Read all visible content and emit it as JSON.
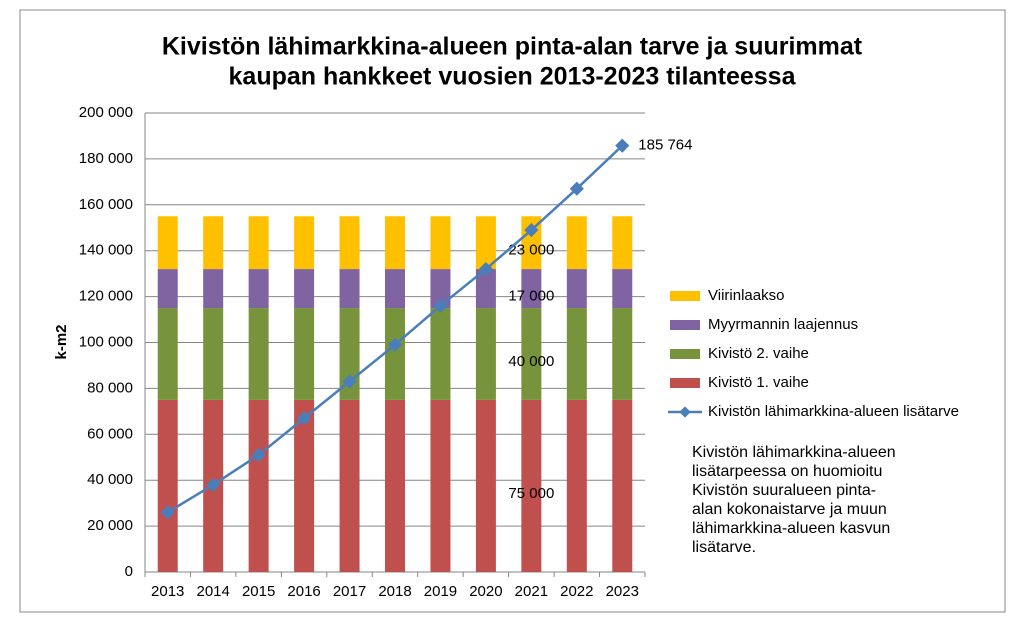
{
  "chart_data": {
    "type": "bar",
    "stacked": true,
    "title": [
      "Kivistön lähimarkkina-alueen pinta-alan tarve ja suurimmat",
      "kaupan hankkeet vuosien 2013-2023 tilanteessa"
    ],
    "y_label": "k-m2",
    "categories": [
      "2013",
      "2014",
      "2015",
      "2016",
      "2017",
      "2018",
      "2019",
      "2020",
      "2021",
      "2022",
      "2023"
    ],
    "series": [
      {
        "name": "Kivistö 1. vaihe",
        "color": "#C0504D",
        "values": [
          75000,
          75000,
          75000,
          75000,
          75000,
          75000,
          75000,
          75000,
          75000,
          75000,
          75000
        ],
        "value_labels": [
          null,
          null,
          null,
          null,
          null,
          null,
          null,
          null,
          "75 000",
          null,
          null
        ]
      },
      {
        "name": "Kivistö 2. vaihe",
        "color": "#77933C",
        "values": [
          40000,
          40000,
          40000,
          40000,
          40000,
          40000,
          40000,
          40000,
          40000,
          40000,
          40000
        ],
        "value_labels": [
          null,
          null,
          null,
          null,
          null,
          null,
          null,
          null,
          "40 000",
          null,
          null
        ]
      },
      {
        "name": "Myyrmannin laajennus",
        "color": "#8064A2",
        "values": [
          17000,
          17000,
          17000,
          17000,
          17000,
          17000,
          17000,
          17000,
          17000,
          17000,
          17000
        ],
        "value_labels": [
          null,
          null,
          null,
          null,
          null,
          null,
          null,
          null,
          "17 000",
          null,
          null
        ]
      },
      {
        "name": "Viirinlaakso",
        "color": "#FFC000",
        "values": [
          23000,
          23000,
          23000,
          23000,
          23000,
          23000,
          23000,
          23000,
          23000,
          23000,
          23000
        ],
        "value_labels": [
          null,
          null,
          null,
          null,
          null,
          null,
          null,
          null,
          "23 000",
          null,
          null
        ]
      },
      {
        "name": "Kivistön lähimarkkina-alueen lisätarve",
        "type": "line",
        "color": "#4A7EBB",
        "values": [
          26000,
          38000,
          51000,
          67000,
          83000,
          99000,
          116000,
          132000,
          149000,
          167000,
          185764
        ],
        "value_labels": [
          null,
          null,
          null,
          null,
          null,
          null,
          null,
          null,
          null,
          null,
          "185 764"
        ]
      }
    ],
    "ylim": [
      0,
      200000
    ],
    "yticks": [
      0,
      {
        "value": 20000,
        "label": "20 000"
      },
      {
        "value": 40000,
        "label": "40 000"
      },
      {
        "value": 60000,
        "label": "60 000"
      },
      {
        "value": 80000,
        "label": "80 000"
      },
      {
        "value": 100000,
        "label": "100 000"
      },
      {
        "value": 120000,
        "label": "120 000"
      },
      {
        "value": 140000,
        "label": "140 000"
      },
      {
        "value": 160000,
        "label": "160 000"
      },
      {
        "value": 180000,
        "label": "180 000"
      },
      {
        "value": 200000,
        "label": "200 000"
      }
    ],
    "grid": true,
    "legend": "right",
    "annotation": [
      "Kivistön lähimarkkina-alueen",
      "lisätarpeessa on huomioitu",
      "Kivistön suuralueen pinta-",
      "alan kokonaistarve ja muun",
      "lähimarkkina-alueen kasvun",
      "lisätarve."
    ]
  }
}
